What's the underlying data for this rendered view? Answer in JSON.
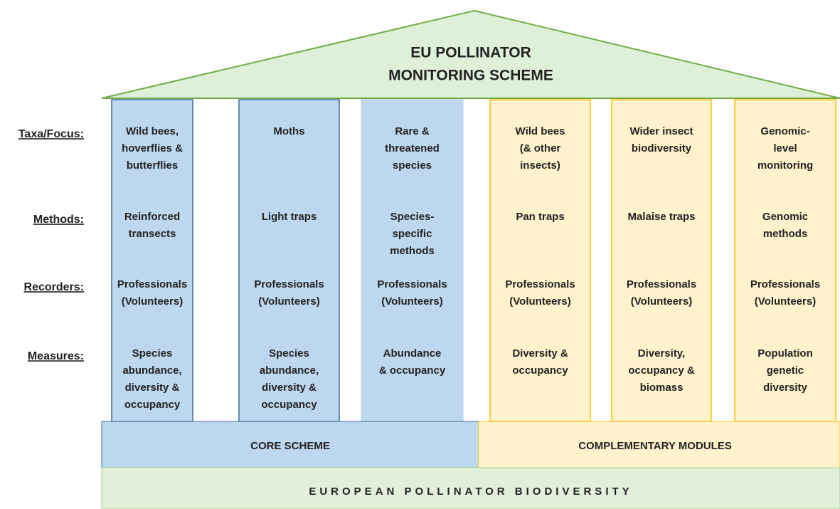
{
  "title": [
    "EU POLLINATOR",
    "MONITORING SCHEME"
  ],
  "row_labels": [
    "Taxa/Focus:",
    "Methods:",
    "Recorders:",
    "Measures:"
  ],
  "pillars": [
    {
      "group": "core",
      "cells": [
        [
          "Wild bees,",
          "hoverflies  &",
          "butterflies"
        ],
        [
          "Reinforced",
          "transects"
        ],
        [
          "Professionals",
          "(Volunteers)"
        ],
        [
          "Species",
          "abundance,",
          "diversity &",
          "occupancy"
        ]
      ]
    },
    {
      "group": "core",
      "cells": [
        [
          "Moths"
        ],
        [
          "Light traps"
        ],
        [
          "Professionals",
          "(Volunteers)"
        ],
        [
          "Species",
          "abundance,",
          "diversity &",
          "occupancy"
        ]
      ]
    },
    {
      "group": "core",
      "cells": [
        [
          "Rare &",
          "threatened",
          "species"
        ],
        [
          "Species-",
          "specific",
          "methods"
        ],
        [
          "Professionals",
          "(Volunteers)"
        ],
        [
          "Abundance",
          "& occupancy"
        ]
      ]
    },
    {
      "group": "complementary",
      "cells": [
        [
          "Wild bees",
          "(& other",
          "insects)"
        ],
        [
          "Pan traps"
        ],
        [
          "Professionals",
          "(Volunteers)"
        ],
        [
          "Diversity &",
          "occupancy"
        ]
      ]
    },
    {
      "group": "complementary",
      "cells": [
        [
          "Wider insect",
          "biodiversity"
        ],
        [
          "Malaise traps"
        ],
        [
          "Professionals",
          "(Volunteers)"
        ],
        [
          "Diversity,",
          "occupancy &",
          "biomass"
        ]
      ]
    },
    {
      "group": "complementary",
      "cells": [
        [
          "Genomic-",
          "level",
          "monitoring"
        ],
        [
          "Genomic",
          "methods"
        ],
        [
          "Professionals",
          "(Volunteers)"
        ],
        [
          "Population",
          "genetic",
          "diversity"
        ]
      ]
    }
  ],
  "base": {
    "core": "CORE SCHEME",
    "complementary": "COMPLEMENTARY MODULES",
    "foundation": "EUROPEAN POLLINATOR BIODIVERSITY"
  }
}
